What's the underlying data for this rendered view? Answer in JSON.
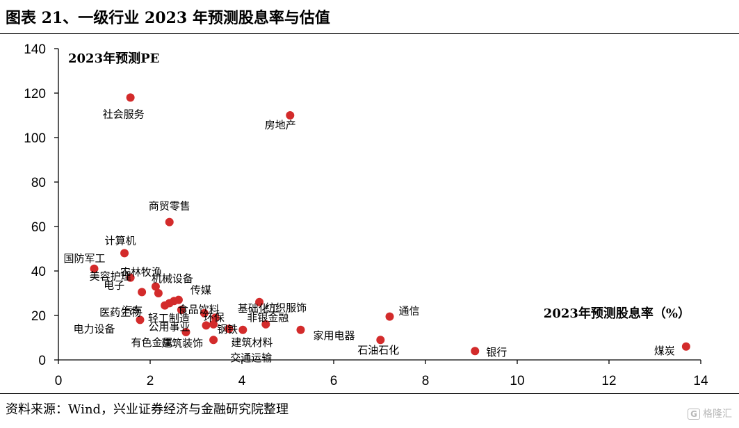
{
  "header": {
    "title": "图表 21、一级行业 2023 年预测股息率与估值"
  },
  "footer": {
    "source": "资料来源：Wind，兴业证券经济与金融研究院整理"
  },
  "watermark": {
    "text": "格隆汇",
    "logo": "G"
  },
  "chart_data": {
    "type": "scatter",
    "title": "",
    "xlabel": "2023年预测股息率（%）",
    "ylabel": "2023年预测PE",
    "xlim": [
      0,
      14
    ],
    "ylim": [
      0,
      140
    ],
    "x_ticks": [
      0,
      2,
      4,
      6,
      8,
      10,
      12,
      14
    ],
    "y_ticks": [
      0,
      20,
      40,
      60,
      80,
      100,
      120,
      140
    ],
    "grid": false,
    "marker_color": "#d32b2b",
    "points": [
      {
        "label": "社会服务",
        "x": 1.57,
        "y": 118
      },
      {
        "label": "房地产",
        "x": 5.05,
        "y": 110
      },
      {
        "label": "商贸零售",
        "x": 2.42,
        "y": 62
      },
      {
        "label": "计算机",
        "x": 1.44,
        "y": 48
      },
      {
        "label": "国防军工",
        "x": 0.78,
        "y": 41
      },
      {
        "label": "美容护理",
        "x": 1.57,
        "y": 37
      },
      {
        "label": "农林牧渔",
        "x": 2.12,
        "y": 33
      },
      {
        "label": "机械设备",
        "x": 2.18,
        "y": 30
      },
      {
        "label": "电子",
        "x": 1.82,
        "y": 30.5
      },
      {
        "label": "传媒",
        "x": 2.62,
        "y": 27
      },
      {
        "label": "汽车",
        "x": 2.52,
        "y": 26.5
      },
      {
        "label": "食品饮料",
        "x": 2.42,
        "y": 25.5
      },
      {
        "label": "医药生物",
        "x": 2.32,
        "y": 24.5
      },
      {
        "label": "轻工制造",
        "x": 2.68,
        "y": 22.5
      },
      {
        "label": "环保",
        "x": 3.18,
        "y": 21
      },
      {
        "label": "纺织服饰",
        "x": 4.38,
        "y": 26
      },
      {
        "label": "基础化工",
        "x": 3.42,
        "y": 19
      },
      {
        "label": "电力设备",
        "x": 1.78,
        "y": 18
      },
      {
        "label": "公用事业",
        "x": 3.22,
        "y": 15.5
      },
      {
        "label": "钢铁",
        "x": 3.38,
        "y": 16
      },
      {
        "label": "非银金融",
        "x": 4.52,
        "y": 16
      },
      {
        "label": "通信",
        "x": 7.22,
        "y": 19.5
      },
      {
        "label": "有色金属",
        "x": 2.78,
        "y": 12.5
      },
      {
        "label": "建筑材料",
        "x": 3.72,
        "y": 14
      },
      {
        "label": "交通运输",
        "x": 4.02,
        "y": 13.5
      },
      {
        "label": "家用电器",
        "x": 5.28,
        "y": 13.5
      },
      {
        "label": "建筑装饰",
        "x": 3.38,
        "y": 9
      },
      {
        "label": "石油石化",
        "x": 7.02,
        "y": 9
      },
      {
        "label": "银行",
        "x": 9.08,
        "y": 4
      },
      {
        "label": "煤炭",
        "x": 13.68,
        "y": 6
      }
    ]
  }
}
